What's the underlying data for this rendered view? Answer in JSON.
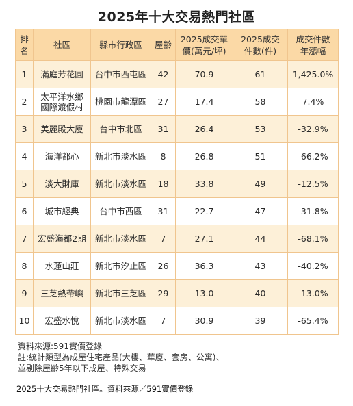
{
  "title": "2025年十大交易熱門社區",
  "headers": {
    "rank": "排名",
    "community": "社區",
    "district": "縣市行政區",
    "age": "屋齡",
    "price": "2025成交單價(萬元/坪)",
    "count": "2025成交件數(件)",
    "growth": "成交件數年漲幅"
  },
  "rows": [
    {
      "rank": "1",
      "community": "滿庭芳花園",
      "district": "台中市西屯區",
      "age": "42",
      "price": "70.9",
      "count": "61",
      "growth": "1,425.0%"
    },
    {
      "rank": "2",
      "community": "太平洋水鄉國際渡假村",
      "district": "桃園市龍潭區",
      "age": "27",
      "price": "17.4",
      "count": "58",
      "growth": "7.4%"
    },
    {
      "rank": "3",
      "community": "美麗殿大廈",
      "district": "台中市北區",
      "age": "31",
      "price": "26.4",
      "count": "53",
      "growth": "-32.9%"
    },
    {
      "rank": "4",
      "community": "海洋都心",
      "district": "新北市淡水區",
      "age": "8",
      "price": "26.8",
      "count": "51",
      "growth": "-66.2%"
    },
    {
      "rank": "5",
      "community": "淡大財庫",
      "district": "新北市淡水區",
      "age": "18",
      "price": "33.8",
      "count": "49",
      "growth": "-12.5%"
    },
    {
      "rank": "6",
      "community": "城市經典",
      "district": "台中市西區",
      "age": "31",
      "price": "22.7",
      "count": "47",
      "growth": "-31.8%"
    },
    {
      "rank": "7",
      "community": "宏盛海都2期",
      "district": "新北市淡水區",
      "age": "7",
      "price": "27.1",
      "count": "44",
      "growth": "-68.1%"
    },
    {
      "rank": "8",
      "community": "水蓮山莊",
      "district": "新北市汐止區",
      "age": "26",
      "price": "36.3",
      "count": "43",
      "growth": "-40.2%"
    },
    {
      "rank": "9",
      "community": "三芝熱帶嶼",
      "district": "新北市三芝區",
      "age": "29",
      "price": "13.0",
      "count": "40",
      "growth": "-13.0%"
    },
    {
      "rank": "10",
      "community": "宏盛水悅",
      "district": "新北市淡水區",
      "age": "7",
      "price": "30.9",
      "count": "39",
      "growth": "-65.4%"
    }
  ],
  "notes": {
    "source": "資料來源:591實價登錄",
    "note1": "註:統計類型為成屋住宅產品(大樓、華廈、套房、公寓)、",
    "note2": "並剔除屋齡5年以下成屋、特殊交易"
  },
  "caption": "2025十大交易熱門社區。資料來源／591實價登錄",
  "colors": {
    "header_bg": "#fbd9a6",
    "stripe_bg": "#fdf0d8",
    "border": "#f0c58e"
  }
}
